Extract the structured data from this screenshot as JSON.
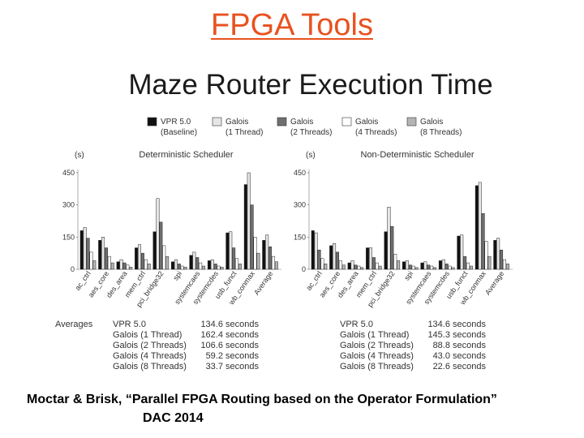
{
  "slide": {
    "title": "FPGA Tools",
    "figure_title": "Maze Router Execution Time",
    "caption_line1": "Moctar & Brisk, “Parallel FPGA Routing based on the Operator Formulation”",
    "caption_line2": "DAC 2014"
  },
  "legend": [
    {
      "name": "VPR 5.0",
      "sub": "(Baseline)",
      "color": "#111111"
    },
    {
      "name": "Galois",
      "sub": "(1 Thread)",
      "color": "#e6e6e6"
    },
    {
      "name": "Galois",
      "sub": "(2 Threads)",
      "color": "#6f6f6f"
    },
    {
      "name": "Galois",
      "sub": "(4 Threads)",
      "color": "#ffffff"
    },
    {
      "name": "Galois",
      "sub": "(8 Threads)",
      "color": "#b4b4b4"
    }
  ],
  "averages": {
    "label": "Averages",
    "rows_left": [
      {
        "name": "VPR 5.0",
        "value": "134.6 seconds"
      },
      {
        "name": "Galois (1 Thread)",
        "value": "162.4 seconds"
      },
      {
        "name": "Galois (2 Threads)",
        "value": "106.6 seconds"
      },
      {
        "name": "Galois (4 Threads)",
        "value": "59.2 seconds"
      },
      {
        "name": "Galois (8 Threads)",
        "value": "33.7 seconds"
      }
    ],
    "rows_right": [
      {
        "name": "VPR 5.0",
        "value": "134.6 seconds"
      },
      {
        "name": "Galois (1 Thread)",
        "value": "145.3 seconds"
      },
      {
        "name": "Galois (2 Threads)",
        "value": "88.8 seconds"
      },
      {
        "name": "Galois (4 Threads)",
        "value": "43.0 seconds"
      },
      {
        "name": "Galois (8 Threads)",
        "value": "22.6 seconds"
      }
    ]
  },
  "chart_data": [
    {
      "type": "bar",
      "title": "Deterministic Scheduler",
      "ylabel": "(s)",
      "ylim": [
        0,
        450
      ],
      "yticks": [
        0,
        150,
        300,
        450
      ],
      "categories": [
        "ac_ctrl",
        "aes_core",
        "des_area",
        "mem_ctrl",
        "pci_bridge32",
        "spi",
        "systemcaes",
        "systemcdes",
        "usb_funct",
        "wb_conmax",
        "Average"
      ],
      "series": [
        {
          "name": "VPR 5.0 (Baseline)",
          "values": [
            180,
            135,
            35,
            100,
            175,
            35,
            65,
            40,
            170,
            395,
            135
          ]
        },
        {
          "name": "Galois (1 Thread)",
          "values": [
            195,
            150,
            45,
            115,
            330,
            45,
            80,
            45,
            175,
            450,
            160
          ]
        },
        {
          "name": "Galois (2 Threads)",
          "values": [
            145,
            100,
            30,
            75,
            220,
            25,
            55,
            25,
            100,
            300,
            105
          ]
        },
        {
          "name": "Galois (4 Threads)",
          "values": [
            80,
            60,
            20,
            45,
            110,
            15,
            30,
            15,
            50,
            150,
            60
          ]
        },
        {
          "name": "Galois (8 Threads)",
          "values": [
            40,
            30,
            10,
            25,
            60,
            10,
            15,
            10,
            25,
            75,
            35
          ]
        }
      ]
    },
    {
      "type": "bar",
      "title": "Non-Deterministic Scheduler",
      "ylabel": "(s)",
      "ylim": [
        0,
        450
      ],
      "yticks": [
        0,
        150,
        300,
        450
      ],
      "categories": [
        "ac_ctrl",
        "aes_core",
        "des_area",
        "mem_ctrl",
        "pci_bridge32",
        "spi",
        "systemcaes",
        "systemcdes",
        "usb_funct",
        "wb_conmax",
        "Average"
      ],
      "series": [
        {
          "name": "VPR 5.0 (Baseline)",
          "values": [
            180,
            110,
            30,
            100,
            175,
            35,
            30,
            40,
            155,
            390,
            135
          ]
        },
        {
          "name": "Galois (1 Thread)",
          "values": [
            170,
            120,
            40,
            100,
            290,
            40,
            35,
            45,
            160,
            405,
            145
          ]
        },
        {
          "name": "Galois (2 Threads)",
          "values": [
            90,
            80,
            20,
            55,
            200,
            20,
            20,
            25,
            60,
            260,
            90
          ]
        },
        {
          "name": "Galois (4 Threads)",
          "values": [
            50,
            40,
            15,
            30,
            70,
            15,
            15,
            15,
            30,
            130,
            45
          ]
        },
        {
          "name": "Galois (8 Threads)",
          "values": [
            25,
            20,
            8,
            15,
            40,
            8,
            8,
            8,
            15,
            60,
            25
          ]
        }
      ]
    }
  ]
}
